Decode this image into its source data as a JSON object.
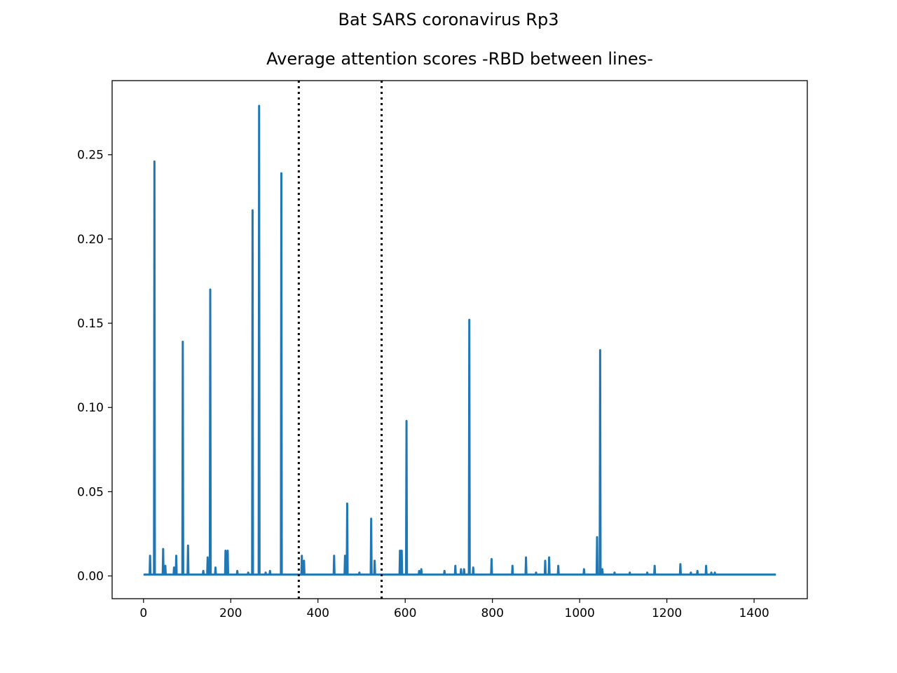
{
  "figure": {
    "suptitle": "Bat SARS coronavirus Rp3"
  },
  "chart_data": {
    "type": "line",
    "title": "Average attention scores -RBD between lines-",
    "xlabel": "",
    "ylabel": "",
    "xlim": [
      -72,
      1522
    ],
    "ylim": [
      -0.0135,
      0.294
    ],
    "xticks": [
      0,
      200,
      400,
      600,
      800,
      1000,
      1200,
      1400
    ],
    "xtick_labels": [
      "0",
      "200",
      "400",
      "600",
      "800",
      "1000",
      "1200",
      "1400"
    ],
    "yticks": [
      0.0,
      0.05,
      0.1,
      0.15,
      0.2,
      0.25
    ],
    "ytick_labels": [
      "0.00",
      "0.05",
      "0.10",
      "0.15",
      "0.20",
      "0.25"
    ],
    "grid": false,
    "vlines": [
      {
        "x": 356,
        "style": "dotted",
        "color": "#000000"
      },
      {
        "x": 546,
        "style": "dotted",
        "color": "#000000"
      }
    ],
    "series": [
      {
        "color": "#1f77b4",
        "x_start": 0,
        "x_end": 1450,
        "baseline": 0.0008,
        "peaks": [
          [
            15,
            0.012
          ],
          [
            25,
            0.246
          ],
          [
            45,
            0.016
          ],
          [
            50,
            0.006
          ],
          [
            70,
            0.005
          ],
          [
            75,
            0.012
          ],
          [
            90,
            0.139
          ],
          [
            102,
            0.018
          ],
          [
            137,
            0.003
          ],
          [
            147,
            0.011
          ],
          [
            153,
            0.17
          ],
          [
            165,
            0.005
          ],
          [
            188,
            0.015
          ],
          [
            193,
            0.015
          ],
          [
            215,
            0.003
          ],
          [
            240,
            0.002
          ],
          [
            250,
            0.217
          ],
          [
            265,
            0.279
          ],
          [
            280,
            0.002
          ],
          [
            290,
            0.003
          ],
          [
            316,
            0.239
          ],
          [
            363,
            0.012
          ],
          [
            368,
            0.009
          ],
          [
            437,
            0.012
          ],
          [
            462,
            0.012
          ],
          [
            467,
            0.043
          ],
          [
            495,
            0.002
          ],
          [
            522,
            0.034
          ],
          [
            530,
            0.009
          ],
          [
            588,
            0.015
          ],
          [
            592,
            0.015
          ],
          [
            603,
            0.092
          ],
          [
            632,
            0.003
          ],
          [
            637,
            0.004
          ],
          [
            690,
            0.003
          ],
          [
            715,
            0.006
          ],
          [
            728,
            0.004
          ],
          [
            735,
            0.004
          ],
          [
            747,
            0.152
          ],
          [
            756,
            0.005
          ],
          [
            798,
            0.01
          ],
          [
            846,
            0.006
          ],
          [
            877,
            0.011
          ],
          [
            900,
            0.002
          ],
          [
            921,
            0.009
          ],
          [
            930,
            0.011
          ],
          [
            951,
            0.006
          ],
          [
            1010,
            0.004
          ],
          [
            1040,
            0.023
          ],
          [
            1047,
            0.134
          ],
          [
            1052,
            0.004
          ],
          [
            1080,
            0.002
          ],
          [
            1115,
            0.002
          ],
          [
            1155,
            0.002
          ],
          [
            1172,
            0.006
          ],
          [
            1231,
            0.007
          ],
          [
            1255,
            0.002
          ],
          [
            1270,
            0.003
          ],
          [
            1290,
            0.006
          ],
          [
            1302,
            0.002
          ],
          [
            1310,
            0.002
          ]
        ]
      }
    ]
  }
}
